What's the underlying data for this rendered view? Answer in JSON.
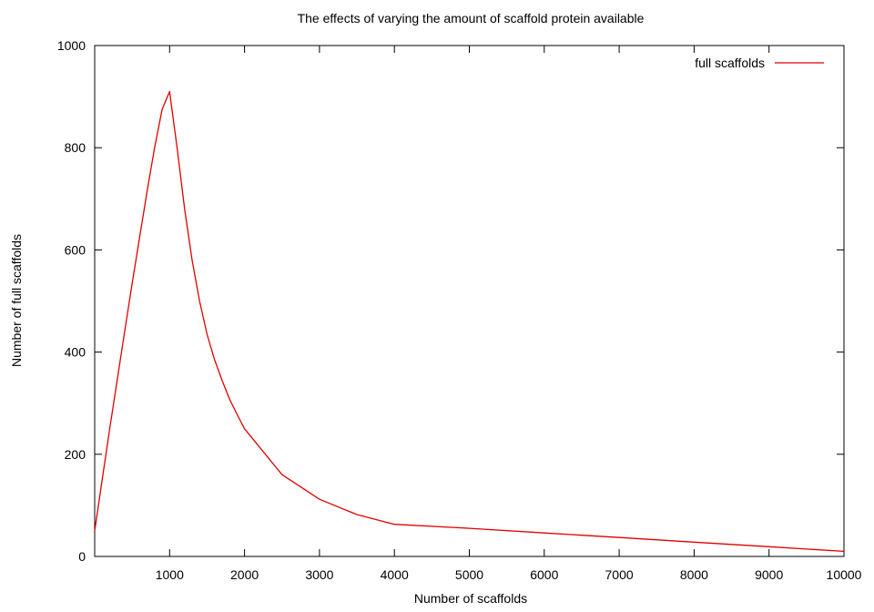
{
  "chart_data": {
    "type": "line",
    "title": "The effects of varying the amount of scaffold protein available",
    "xlabel": "Number of scaffolds",
    "ylabel": "Number of full scaffolds",
    "xlim": [
      0,
      10000
    ],
    "ylim": [
      0,
      1000
    ],
    "xticks": [
      1000,
      2000,
      3000,
      4000,
      5000,
      6000,
      7000,
      8000,
      9000,
      10000
    ],
    "yticks": [
      0,
      200,
      400,
      600,
      800,
      1000
    ],
    "grid": false,
    "legend_position": "top-right",
    "series": [
      {
        "name": "full scaffolds",
        "color": "#e00000",
        "x": [
          0,
          100,
          200,
          300,
          400,
          500,
          600,
          700,
          800,
          900,
          1000,
          1100,
          1200,
          1300,
          1400,
          1500,
          1600,
          1700,
          1800,
          1900,
          2000,
          2500,
          3000,
          3500,
          4000,
          5000,
          6000,
          7000,
          8000,
          9000,
          10000
        ],
        "y": [
          50,
          150,
          250,
          345,
          440,
          535,
          625,
          715,
          800,
          875,
          910,
          800,
          680,
          580,
          500,
          435,
          385,
          345,
          308,
          278,
          250,
          160,
          112,
          82,
          63,
          55,
          46,
          37,
          28,
          19,
          10
        ]
      }
    ]
  }
}
